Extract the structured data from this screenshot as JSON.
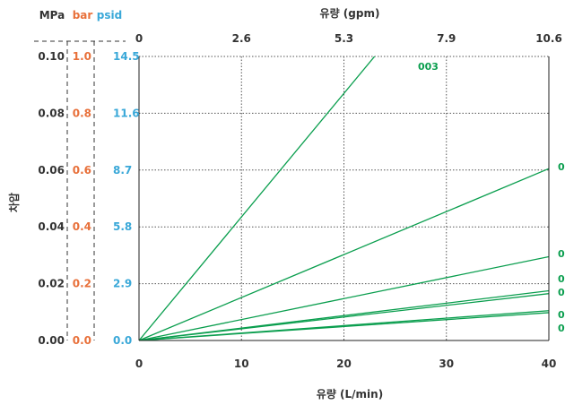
{
  "chart_data": {
    "type": "line",
    "x_bottom": {
      "label": "유량 (L/min)",
      "range": [
        0,
        40
      ],
      "ticks": [
        "0",
        "10",
        "20",
        "30",
        "40"
      ]
    },
    "x_top": {
      "label": "유량 (gpm)",
      "range": [
        0,
        10.6
      ],
      "ticks": [
        "0",
        "2.6",
        "5.3",
        "7.9",
        "10.6"
      ]
    },
    "y_label": "차압",
    "y_axes": [
      {
        "unit": "MPa",
        "color": "#333333",
        "ticks": [
          "0.00",
          "0.02",
          "0.04",
          "0.06",
          "0.08",
          "0.10"
        ]
      },
      {
        "unit": "bar",
        "color": "#e8703a",
        "ticks": [
          "0.0",
          "0.2",
          "0.4",
          "0.6",
          "0.8",
          "1.0"
        ]
      },
      {
        "unit": "psid",
        "color": "#3aa8d8",
        "ticks": [
          "0.0",
          "2.9",
          "5.8",
          "8.7",
          "11.6",
          "14.5"
        ]
      }
    ],
    "ylim_mpa": [
      0,
      0.1
    ],
    "grid": true,
    "line_color": "#0a9e4e",
    "series": [
      {
        "name": "003",
        "x": [
          0,
          40
        ],
        "y": [
          0,
          0.174
        ]
      },
      {
        "name": "0",
        "x": [
          0,
          40
        ],
        "y": [
          0,
          0.0605
        ]
      },
      {
        "name": "0",
        "x": [
          0,
          40
        ],
        "y": [
          0,
          0.0295
        ]
      },
      {
        "name": "0",
        "x": [
          0,
          40
        ],
        "y": [
          0,
          0.0175
        ]
      },
      {
        "name": "0",
        "x": [
          0,
          40
        ],
        "y": [
          0,
          0.0165
        ]
      },
      {
        "name": "0",
        "x": [
          0,
          40
        ],
        "y": [
          0,
          0.0105
        ]
      },
      {
        "name": "0",
        "x": [
          0,
          40
        ],
        "y": [
          0,
          0.0098
        ]
      }
    ]
  }
}
